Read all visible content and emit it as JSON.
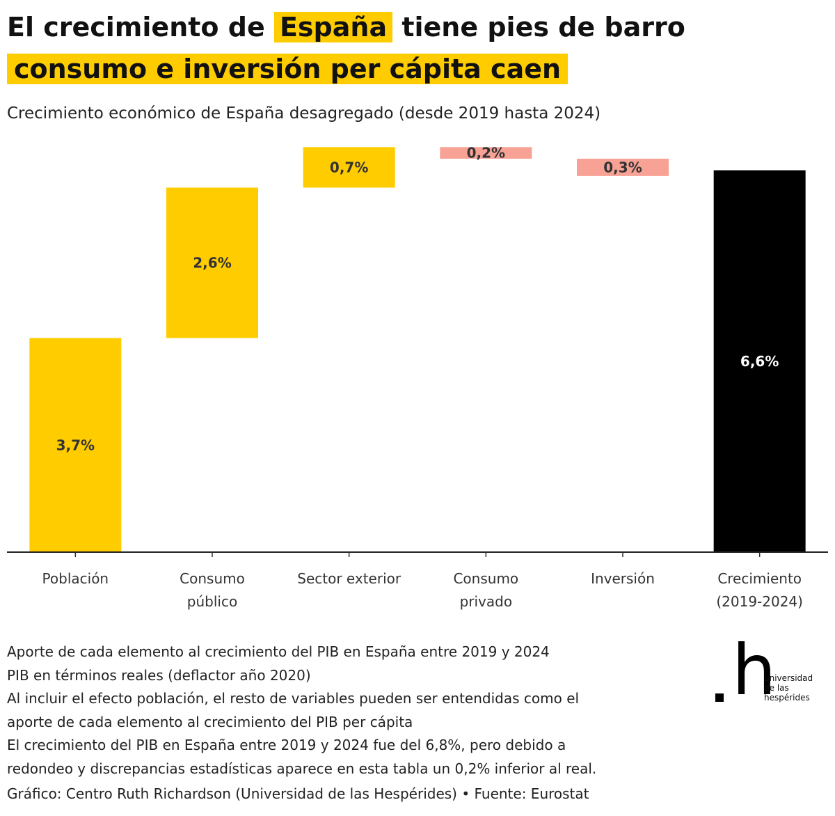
{
  "title": {
    "line1_before": "El crecimiento de",
    "line1_highlight": "España",
    "line1_after": "tiene pies de barro",
    "line2_highlight": "consumo e inversión per cápita caen"
  },
  "subtitle": "Crecimiento económico de España desagregado (desde 2019 hasta 2024)",
  "colors": {
    "positive": "#ffcc00",
    "negative": "#f8a195",
    "total": "#000000",
    "highlight": "#ffcc00"
  },
  "chart_data": {
    "type": "waterfall",
    "title": "Crecimiento económico de España desagregado (desde 2019 hasta 2024)",
    "unit": "%",
    "ylim": [
      0,
      7.1
    ],
    "categories": [
      [
        "Población"
      ],
      [
        "Consumo",
        "público"
      ],
      [
        "Sector exterior"
      ],
      [
        "Consumo",
        "privado"
      ],
      [
        "Inversión"
      ],
      [
        "Crecimiento",
        "(2019-2024)"
      ]
    ],
    "bars": [
      {
        "category": "Población",
        "value": 3.7,
        "label": "3,7%",
        "kind": "positive"
      },
      {
        "category": "Consumo público",
        "value": 2.6,
        "label": "2,6%",
        "kind": "positive"
      },
      {
        "category": "Sector exterior",
        "value": 0.7,
        "label": "0,7%",
        "kind": "positive"
      },
      {
        "category": "Consumo privado",
        "value": -0.2,
        "label": "0,2%",
        "kind": "negative"
      },
      {
        "category": "Inversión",
        "value": -0.3,
        "label": "0,3%",
        "kind": "negative"
      },
      {
        "category": "Crecimiento (2019-2024)",
        "value": 6.6,
        "label": "6,6%",
        "kind": "total"
      }
    ]
  },
  "notes": [
    "Aporte de cada elemento al crecimiento del PIB en España entre 2019 y 2024",
    "PIB en términos reales (deflactor año 2020)",
    "Al incluir el efecto población, el resto de variables pueden ser entendidas como el",
    "aporte de cada elemento al crecimiento del PIB per cápita",
    "El crecimiento del PIB en España entre 2019 y 2024 fue del 6,8%, pero debido a",
    "redondeo y discrepancias estadísticas aparece en esta tabla un 0,2% inferior al real."
  ],
  "credit": "Gráfico: Centro Ruth Richardson (Universidad de las Hespérides) • Fuente: Eurostat",
  "logo": {
    "mark": "h",
    "lines": [
      "universidad",
      "de las",
      "hespérides"
    ]
  }
}
